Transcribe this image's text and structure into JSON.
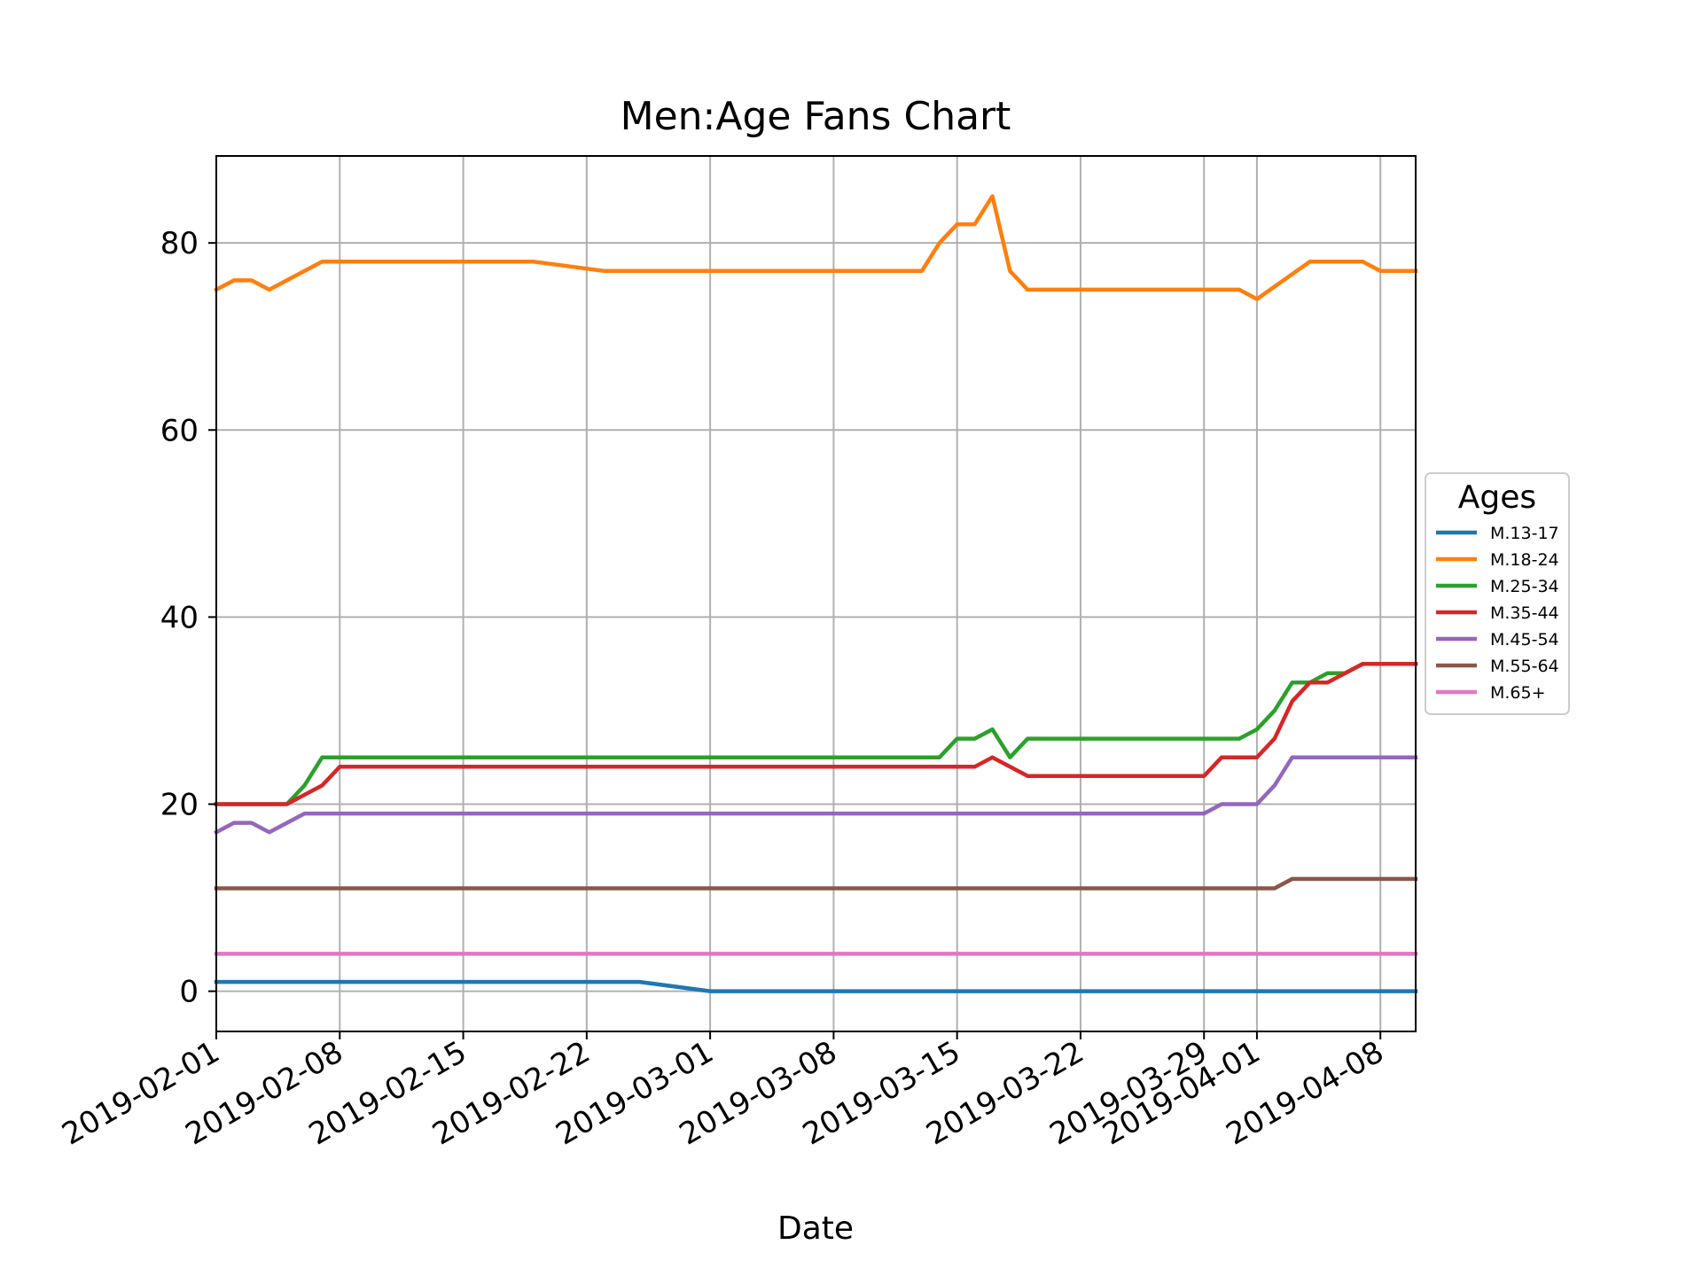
{
  "chart_data": {
    "type": "line",
    "title": "Men:Age Fans Chart",
    "xlabel": "Date",
    "ylabel": "",
    "xlim": [
      "2019-02-01",
      "2019-04-10"
    ],
    "ylim": [
      -4.3,
      89.3
    ],
    "grid": true,
    "x_ticks": [
      "2019-02-01",
      "2019-02-08",
      "2019-02-15",
      "2019-02-22",
      "2019-03-01",
      "2019-03-08",
      "2019-03-15",
      "2019-03-22",
      "2019-03-29",
      "2019-04-01",
      "2019-04-08"
    ],
    "y_ticks": [
      0,
      20,
      40,
      60,
      80
    ],
    "legend": {
      "title": "Ages",
      "placement": "center-right, outside plot"
    },
    "series": [
      {
        "name": "M.13-17",
        "color": "#1f77b4",
        "points": [
          [
            "2019-02-01",
            1
          ],
          [
            "2019-02-25",
            1
          ],
          [
            "2019-03-01",
            0
          ],
          [
            "2019-04-10",
            0
          ]
        ]
      },
      {
        "name": "M.18-24",
        "color": "#ff7f0e",
        "points": [
          [
            "2019-02-01",
            75
          ],
          [
            "2019-02-02",
            76
          ],
          [
            "2019-02-03",
            76
          ],
          [
            "2019-02-04",
            75
          ],
          [
            "2019-02-07",
            78
          ],
          [
            "2019-02-19",
            78
          ],
          [
            "2019-02-23",
            77
          ],
          [
            "2019-03-13",
            77
          ],
          [
            "2019-03-14",
            80
          ],
          [
            "2019-03-15",
            82
          ],
          [
            "2019-03-16",
            82
          ],
          [
            "2019-03-17",
            85
          ],
          [
            "2019-03-18",
            77
          ],
          [
            "2019-03-19",
            75
          ],
          [
            "2019-03-31",
            75
          ],
          [
            "2019-04-01",
            74
          ],
          [
            "2019-04-04",
            78
          ],
          [
            "2019-04-07",
            78
          ],
          [
            "2019-04-08",
            77
          ],
          [
            "2019-04-10",
            77
          ]
        ]
      },
      {
        "name": "M.25-34",
        "color": "#2ca02c",
        "points": [
          [
            "2019-02-01",
            20
          ],
          [
            "2019-02-05",
            20
          ],
          [
            "2019-02-06",
            22
          ],
          [
            "2019-02-07",
            25
          ],
          [
            "2019-03-14",
            25
          ],
          [
            "2019-03-15",
            27
          ],
          [
            "2019-03-16",
            27
          ],
          [
            "2019-03-17",
            28
          ],
          [
            "2019-03-18",
            25
          ],
          [
            "2019-03-19",
            27
          ],
          [
            "2019-03-31",
            27
          ],
          [
            "2019-04-01",
            28
          ],
          [
            "2019-04-02",
            30
          ],
          [
            "2019-04-03",
            33
          ],
          [
            "2019-04-04",
            33
          ],
          [
            "2019-04-05",
            34
          ],
          [
            "2019-04-06",
            34
          ],
          [
            "2019-04-07",
            35
          ],
          [
            "2019-04-10",
            35
          ]
        ]
      },
      {
        "name": "M.35-44",
        "color": "#d62728",
        "points": [
          [
            "2019-02-01",
            20
          ],
          [
            "2019-02-05",
            20
          ],
          [
            "2019-02-07",
            22
          ],
          [
            "2019-02-08",
            24
          ],
          [
            "2019-03-16",
            24
          ],
          [
            "2019-03-17",
            25
          ],
          [
            "2019-03-19",
            23
          ],
          [
            "2019-03-29",
            23
          ],
          [
            "2019-03-30",
            25
          ],
          [
            "2019-04-01",
            25
          ],
          [
            "2019-04-02",
            27
          ],
          [
            "2019-04-03",
            31
          ],
          [
            "2019-04-04",
            33
          ],
          [
            "2019-04-05",
            33
          ],
          [
            "2019-04-07",
            35
          ],
          [
            "2019-04-10",
            35
          ]
        ]
      },
      {
        "name": "M.45-54",
        "color": "#9467bd",
        "points": [
          [
            "2019-02-01",
            17
          ],
          [
            "2019-02-02",
            18
          ],
          [
            "2019-02-03",
            18
          ],
          [
            "2019-02-04",
            17
          ],
          [
            "2019-02-06",
            19
          ],
          [
            "2019-03-29",
            19
          ],
          [
            "2019-03-30",
            20
          ],
          [
            "2019-04-01",
            20
          ],
          [
            "2019-04-02",
            22
          ],
          [
            "2019-04-03",
            25
          ],
          [
            "2019-04-10",
            25
          ]
        ]
      },
      {
        "name": "M.55-64",
        "color": "#8c564b",
        "points": [
          [
            "2019-02-01",
            11
          ],
          [
            "2019-04-02",
            11
          ],
          [
            "2019-04-03",
            12
          ],
          [
            "2019-04-10",
            12
          ]
        ]
      },
      {
        "name": "M.65+",
        "color": "#e377c2",
        "points": [
          [
            "2019-02-01",
            4
          ],
          [
            "2019-04-10",
            4
          ]
        ]
      }
    ]
  }
}
